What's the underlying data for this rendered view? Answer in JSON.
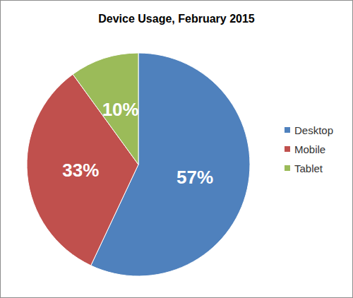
{
  "chart_data": {
    "type": "pie",
    "title": "Device Usage, February 2015",
    "categories": [
      "Desktop",
      "Mobile",
      "Tablet"
    ],
    "values": [
      57,
      33,
      10
    ],
    "value_labels": [
      "57%",
      "33%",
      "10%"
    ],
    "colors": [
      "#4f81bd",
      "#c0504d",
      "#9bbb59"
    ],
    "data_labels": true,
    "legend": "right"
  }
}
